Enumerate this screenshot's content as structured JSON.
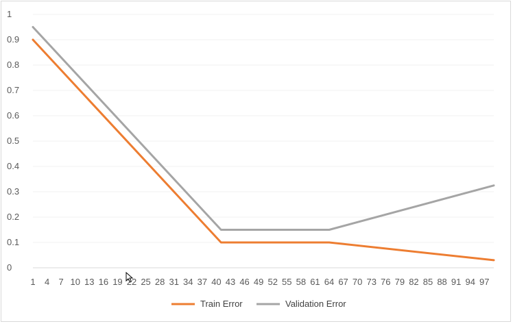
{
  "chart_data": {
    "type": "line",
    "title": "",
    "xlabel": "",
    "ylabel": "",
    "x_start": 1,
    "x_end": 99,
    "x_tick_labels": [
      "1",
      "4",
      "7",
      "10",
      "13",
      "16",
      "19",
      "22",
      "25",
      "28",
      "31",
      "34",
      "37",
      "40",
      "43",
      "46",
      "49",
      "52",
      "55",
      "58",
      "61",
      "64",
      "67",
      "70",
      "73",
      "76",
      "79",
      "82",
      "85",
      "88",
      "91",
      "94",
      "97"
    ],
    "y_tick_labels": [
      "0",
      "0.1",
      "0.2",
      "0.3",
      "0.4",
      "0.5",
      "0.6",
      "0.7",
      "0.8",
      "0.9",
      "1"
    ],
    "ylim": [
      0,
      1
    ],
    "grid": "horizontal",
    "legend_position": "bottom",
    "series": [
      {
        "name": "Train Error",
        "color": "#ed7d31",
        "points": [
          [
            1,
            0.9
          ],
          [
            41,
            0.1
          ],
          [
            64,
            0.1
          ],
          [
            99,
            0.03
          ]
        ]
      },
      {
        "name": "Validation Error",
        "color": "#a5a5a5",
        "points": [
          [
            1,
            0.95
          ],
          [
            41,
            0.15
          ],
          [
            64,
            0.15
          ],
          [
            99,
            0.325
          ]
        ]
      }
    ]
  },
  "icons": {
    "cursor": "mouse-pointer-icon"
  }
}
